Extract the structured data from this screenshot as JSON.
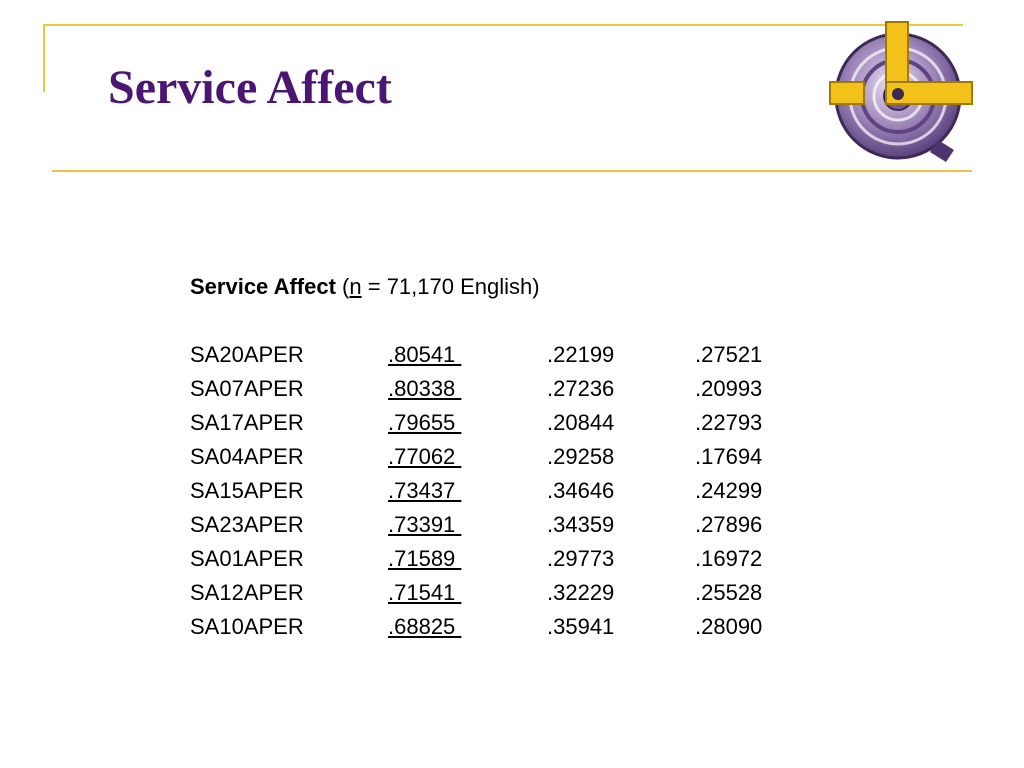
{
  "slide": {
    "title": "Service Affect"
  },
  "logo": {
    "icon": "target-with-l-arm-icon",
    "colors": {
      "ring": "#7a5a9e",
      "ring_light": "#c9b8dc",
      "arm": "#f2c21b",
      "center": "#3c2a55"
    }
  },
  "content": {
    "heading_bold": "Service Affect",
    "heading_open": " (",
    "heading_n": "n",
    "heading_rest": " = 71,170 English)",
    "rows": [
      {
        "code": "SA20APER",
        "v1": ".80541 ",
        "v2": ".22199",
        "v3": ".27521"
      },
      {
        "code": "SA07APER",
        "v1": ".80338 ",
        "v2": ".27236",
        "v3": ".20993"
      },
      {
        "code": "SA17APER",
        "v1": ".79655 ",
        "v2": ".20844",
        "v3": ".22793"
      },
      {
        "code": "SA04APER",
        "v1": ".77062 ",
        "v2": ".29258",
        "v3": ".17694"
      },
      {
        "code": "SA15APER",
        "v1": ".73437 ",
        "v2": ".34646",
        "v3": ".24299"
      },
      {
        "code": "SA23APER",
        "v1": ".73391 ",
        "v2": ".34359",
        "v3": ".27896"
      },
      {
        "code": "SA01APER",
        "v1": ".71589 ",
        "v2": ".29773",
        "v3": ".16972"
      },
      {
        "code": "SA12APER",
        "v1": ".71541 ",
        "v2": ".32229",
        "v3": ".25528"
      },
      {
        "code": "SA10APER",
        "v1": ".68825 ",
        "v2": ".35941",
        "v3": ".28090"
      }
    ]
  }
}
